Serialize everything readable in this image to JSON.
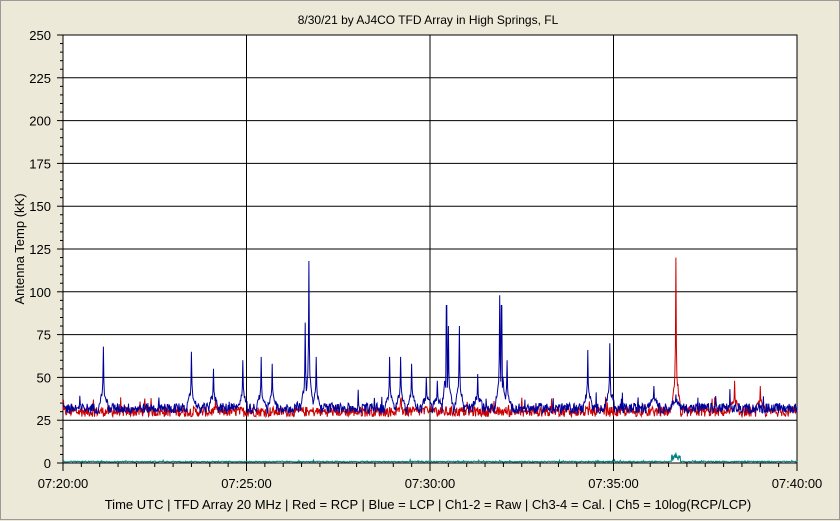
{
  "chart_data": {
    "type": "line",
    "title": "8/30/21  by  AJ4CO TFD Array  in  High Springs, FL",
    "xlabel": "Time UTC | TFD Array 20 MHz | Red = RCP | Blue = LCP | Ch1-2 = Raw | Ch3-4 = Cal. | Ch5 = 10log(RCP/LCP)",
    "ylabel": "Antenna Temp (kK)",
    "ylim": [
      0,
      250
    ],
    "yticks": [
      "0",
      "25",
      "50",
      "75",
      "100",
      "125",
      "150",
      "175",
      "200",
      "225",
      "250"
    ],
    "xlim_minutes": [
      0,
      20
    ],
    "xticks": [
      {
        "label": "07:20:00",
        "minute": 0
      },
      {
        "label": "07:25:00",
        "minute": 5
      },
      {
        "label": "07:30:00",
        "minute": 10
      },
      {
        "label": "07:35:00",
        "minute": 15
      },
      {
        "label": "07:40:00",
        "minute": 20
      }
    ],
    "grid": true,
    "background_color": "#ffffff",
    "series": [
      {
        "color": "#cc0000",
        "baseline": 30,
        "noise": 3,
        "bursts": [
          [
            9.2,
            5
          ],
          [
            10.0,
            15
          ],
          [
            16.7,
            120
          ],
          [
            18.3,
            48
          ],
          [
            19.0,
            45
          ]
        ]
      },
      {
        "color": "#000099",
        "baseline": 32,
        "noise": 3,
        "bursts": [
          [
            1.1,
            68
          ],
          [
            3.5,
            65
          ],
          [
            4.1,
            55
          ],
          [
            4.9,
            60
          ],
          [
            5.4,
            62
          ],
          [
            5.7,
            58
          ],
          [
            6.6,
            82
          ],
          [
            6.7,
            118
          ],
          [
            6.9,
            62
          ],
          [
            8.9,
            62
          ],
          [
            9.2,
            62
          ],
          [
            9.5,
            58
          ],
          [
            9.9,
            50
          ],
          [
            10.2,
            48
          ],
          [
            10.45,
            116
          ],
          [
            10.5,
            80
          ],
          [
            10.8,
            80
          ],
          [
            11.3,
            52
          ],
          [
            11.9,
            98
          ],
          [
            11.95,
            116
          ],
          [
            12.1,
            60
          ],
          [
            14.3,
            66
          ],
          [
            14.9,
            70
          ],
          [
            16.1,
            45
          ],
          [
            16.7,
            40
          ]
        ]
      },
      {
        "color": "#008080",
        "baseline": 0.8,
        "noise": 0.3,
        "bursts": [
          [
            16.7,
            6
          ]
        ]
      }
    ]
  }
}
